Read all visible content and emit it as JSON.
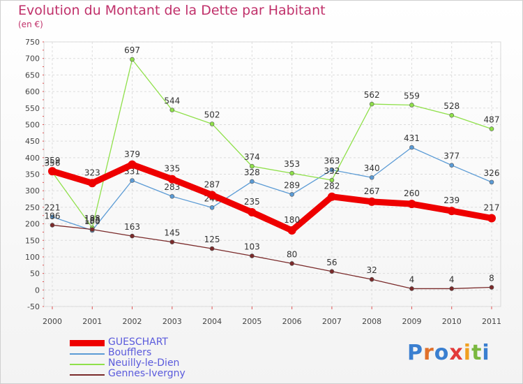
{
  "title": "Evolution du Montant de la Dette par Habitant",
  "subtitle": "(en €)",
  "logo": {
    "text": "Proxiti",
    "letter_colors": [
      "#3a7fd0",
      "#e0702a",
      "#3a7fd0",
      "#e23a3a",
      "#f0a020",
      "#7ab840",
      "#3a7fd0"
    ]
  },
  "chart_data": {
    "type": "line",
    "title": "Evolution du Montant de la Dette par Habitant",
    "ylabel": "(en €)",
    "x": [
      "2000",
      "2001",
      "2002",
      "2003",
      "2004",
      "2005",
      "2006",
      "2007",
      "2008",
      "2009",
      "2010",
      "2011"
    ],
    "ylim": [
      -50,
      750
    ],
    "yticks": [
      -50,
      0,
      50,
      100,
      150,
      200,
      250,
      300,
      350,
      400,
      450,
      500,
      550,
      600,
      650,
      700,
      750
    ],
    "grid": true,
    "series": [
      {
        "name": "Boufflers",
        "color": "#5b9bd5",
        "values": [
          221,
          180,
          331,
          283,
          249,
          328,
          289,
          363,
          340,
          431,
          377,
          326
        ]
      },
      {
        "name": "Neuilly-le-Dien",
        "color": "#8fe04a",
        "values": [
          356,
          188,
          697,
          544,
          502,
          374,
          353,
          332,
          562,
          559,
          528,
          487
        ]
      },
      {
        "name": "Gennes-Ivergny",
        "color": "#7a2a2a",
        "values": [
          196,
          183,
          163,
          145,
          125,
          103,
          80,
          56,
          32,
          4,
          4,
          8
        ]
      },
      {
        "name": "GUESCHART",
        "color": "#ee0000",
        "values": [
          359,
          323,
          379,
          335,
          287,
          235,
          180,
          282,
          267,
          260,
          239,
          217
        ]
      }
    ],
    "legend": [
      "GUESCHART",
      "Boufflers",
      "Neuilly-le-Dien",
      "Gennes-Ivergny"
    ]
  }
}
